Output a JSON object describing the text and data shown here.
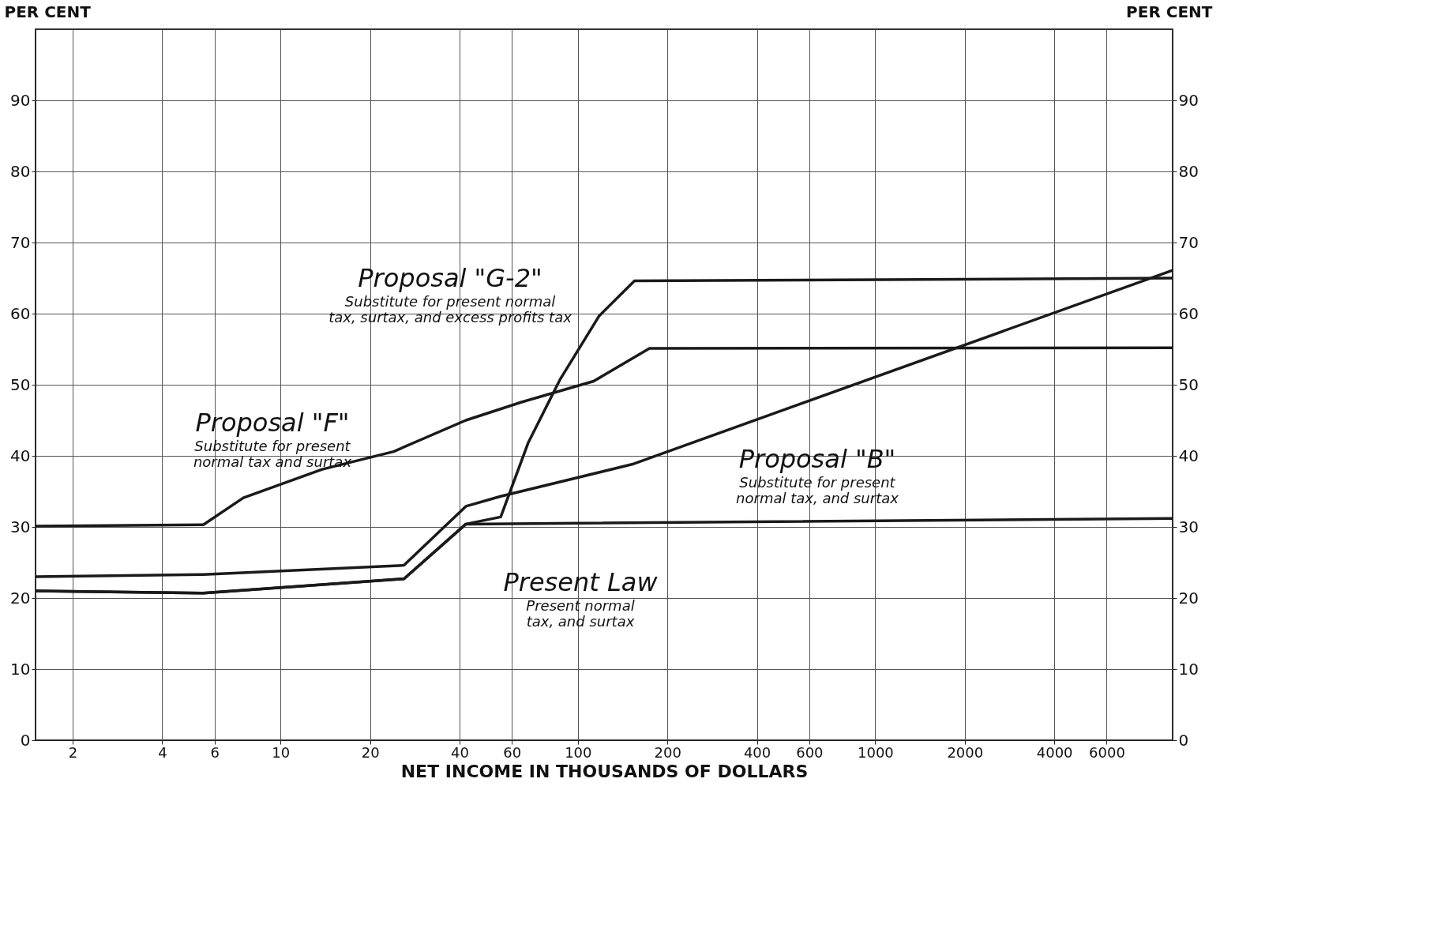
{
  "chart_data": {
    "type": "line",
    "xlabel": "NET INCOME IN THOUSANDS OF DOLLARS",
    "ylabel": "PER CENT",
    "y2label": "PER CENT",
    "xlim": [
      1.5,
      10000
    ],
    "xticks": [
      2,
      4,
      6,
      10,
      20,
      40,
      60,
      100,
      200,
      400,
      600,
      1000,
      2000,
      4000,
      6000
    ],
    "ylim": [
      0,
      100
    ],
    "yticks": [
      0,
      10,
      20,
      30,
      40,
      50,
      60,
      70,
      80,
      90
    ],
    "y2lim": [
      0,
      100
    ],
    "y2ticks": [
      0,
      10,
      20,
      30,
      40,
      50,
      60,
      70,
      80,
      90
    ],
    "log": "x",
    "grid": true,
    "line_style": "solid",
    "marker": "none",
    "series": [
      {
        "name": "Proposal \"G-2\"",
        "color": "#1a1a1a",
        "x": [
          1.5,
          5.5,
          26,
          42,
          55,
          68,
          87,
          118,
          155,
          10000
        ],
        "values": [
          21.0,
          20.7,
          22.7,
          30.4,
          31.4,
          41.8,
          50.7,
          59.7,
          64.6,
          65.0
        ]
      },
      {
        "name": "Proposal \"F\"",
        "color": "#1a1a1a",
        "x": [
          1.5,
          5.5,
          7.5,
          13.8,
          24,
          42,
          64,
          113,
          174,
          10000
        ],
        "values": [
          30.1,
          30.3,
          34.1,
          38.1,
          40.6,
          45.0,
          47.5,
          50.5,
          55.1,
          55.2
        ]
      },
      {
        "name": "Proposal \"B\"",
        "color": "#1a1a1a",
        "x": [
          1.5,
          5.5,
          26,
          42,
          55,
          152,
          10000
        ],
        "values": [
          23.0,
          23.3,
          24.6,
          32.9,
          34.3,
          38.8,
          66.1
        ]
      },
      {
        "name": "Present Law",
        "color": "#1a1a1a",
        "x": [
          1.5,
          5.5,
          26,
          42,
          10000
        ],
        "values": [
          21.0,
          20.7,
          22.7,
          30.4,
          31.2
        ]
      }
    ],
    "annotations": [
      "Substitute for present normal\ntax, surtax, and excess profits tax",
      "Substitute for present\nnormal tax and surtax",
      "Substitute for present\nnormal tax, and surtax",
      "Present normal\ntax, and surtax"
    ]
  }
}
